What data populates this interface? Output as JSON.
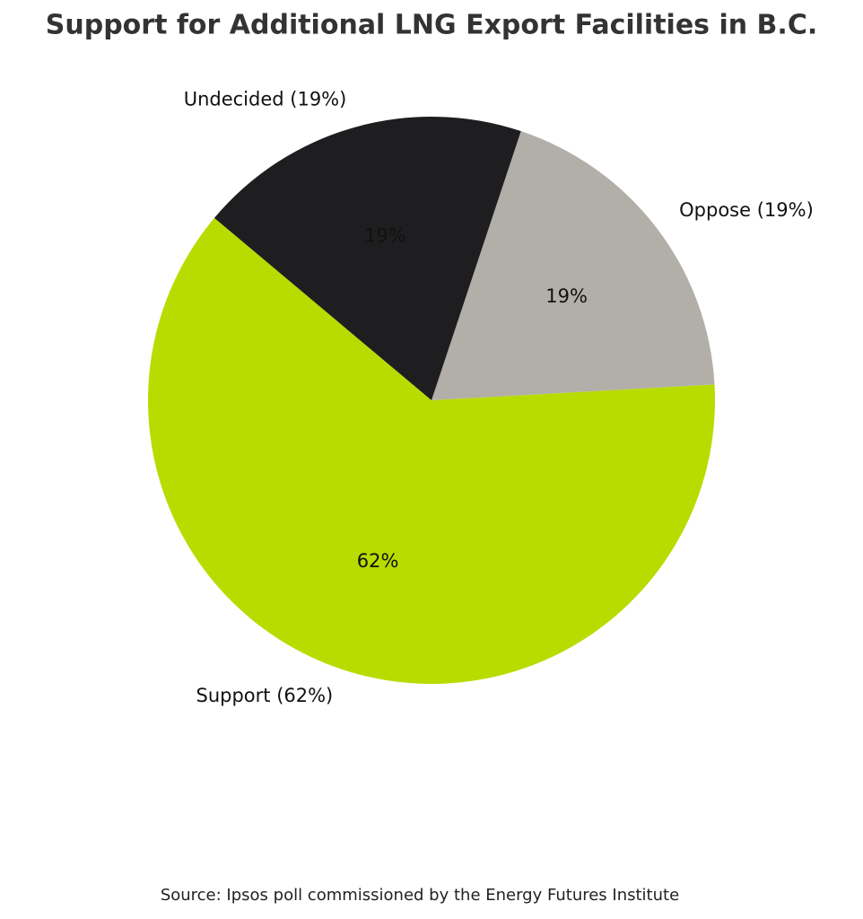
{
  "chart_data": {
    "type": "pie",
    "title": "Support for Additional LNG Export Facilities in B.C.",
    "categories": [
      "Support (62%)",
      "Oppose (19%)",
      "Undecided (19%)"
    ],
    "values": [
      62,
      19,
      19
    ],
    "value_labels": [
      "62%",
      "19%",
      "19%"
    ],
    "colors": [
      "#b8dc00",
      "#b2afa8",
      "#1e1e20"
    ],
    "source": "Source: Ipsos poll commissioned by the Energy Futures Institute"
  }
}
